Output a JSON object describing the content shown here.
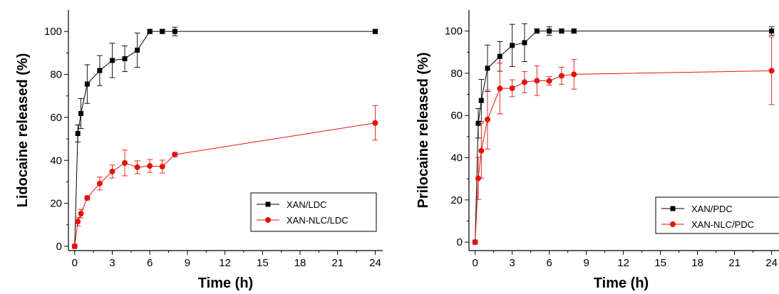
{
  "colors": {
    "black_series": "#000000",
    "red_series": "#e3120b",
    "axis": "#000000"
  },
  "chart_data": [
    {
      "type": "line",
      "xlabel": "Time (h)",
      "ylabel": "Lidocaine released (%)",
      "xlim": [
        -0.5,
        24.6
      ],
      "ylim": [
        -2,
        110
      ],
      "xticks": [
        0,
        3,
        6,
        9,
        12,
        15,
        18,
        21,
        24
      ],
      "yticks": [
        0,
        20,
        40,
        60,
        80,
        100
      ],
      "legend_position": "bottom-right",
      "series": [
        {
          "name": "XAN/LDC",
          "marker": "square",
          "color": "#000000",
          "x": [
            0,
            0.25,
            0.5,
            1,
            2,
            3,
            4,
            5,
            6,
            7,
            8,
            24
          ],
          "y": [
            0,
            52.5,
            61.8,
            75.5,
            81.8,
            86.5,
            87.3,
            91.3,
            100,
            100,
            100,
            100
          ],
          "err": [
            0,
            4,
            7,
            9,
            7,
            8,
            6,
            8,
            1,
            1,
            2,
            1
          ]
        },
        {
          "name": "XAN-NLC/LDC",
          "marker": "circle",
          "color": "#e3120b",
          "x": [
            0,
            0.25,
            0.5,
            1,
            2,
            3,
            4,
            5,
            6,
            7,
            8,
            24
          ],
          "y": [
            0,
            11.5,
            15.2,
            22.5,
            29.2,
            34.8,
            38.8,
            36.8,
            37.4,
            37.1,
            42.7,
            57.4
          ],
          "err": [
            0,
            2,
            2,
            1,
            3,
            3,
            6,
            3,
            3,
            3,
            1,
            8
          ]
        }
      ]
    },
    {
      "type": "line",
      "xlabel": "Time (h)",
      "ylabel": "Prilocaine released (%)",
      "xlim": [
        -0.5,
        24.6
      ],
      "ylim": [
        -4,
        110
      ],
      "xticks": [
        0,
        3,
        6,
        9,
        12,
        15,
        18,
        21,
        24
      ],
      "yticks": [
        0,
        20,
        40,
        60,
        80,
        100
      ],
      "legend_position": "bottom-right",
      "series": [
        {
          "name": "XAN/PDC",
          "marker": "square",
          "color": "#000000",
          "x": [
            0,
            0.25,
            0.5,
            1,
            2,
            3,
            4,
            5,
            6,
            7,
            8,
            24
          ],
          "y": [
            0,
            56.3,
            67.1,
            82.4,
            88,
            93.2,
            94.5,
            100,
            100,
            100,
            100,
            100
          ],
          "err": [
            0,
            7,
            10,
            11,
            7,
            10,
            9,
            1,
            2,
            1,
            1,
            2
          ]
        },
        {
          "name": "XAN-NLC/PDC",
          "marker": "circle",
          "color": "#e3120b",
          "x": [
            0,
            0.25,
            0.5,
            1,
            2,
            3,
            4,
            5,
            6,
            7,
            8,
            24
          ],
          "y": [
            0,
            30.2,
            43.3,
            58.1,
            72.8,
            72.9,
            75.8,
            76.5,
            76.4,
            78.8,
            79.5,
            81.2
          ],
          "err": [
            0,
            10,
            13,
            14,
            12,
            4,
            5,
            7,
            2,
            4,
            7,
            16
          ]
        }
      ]
    }
  ]
}
